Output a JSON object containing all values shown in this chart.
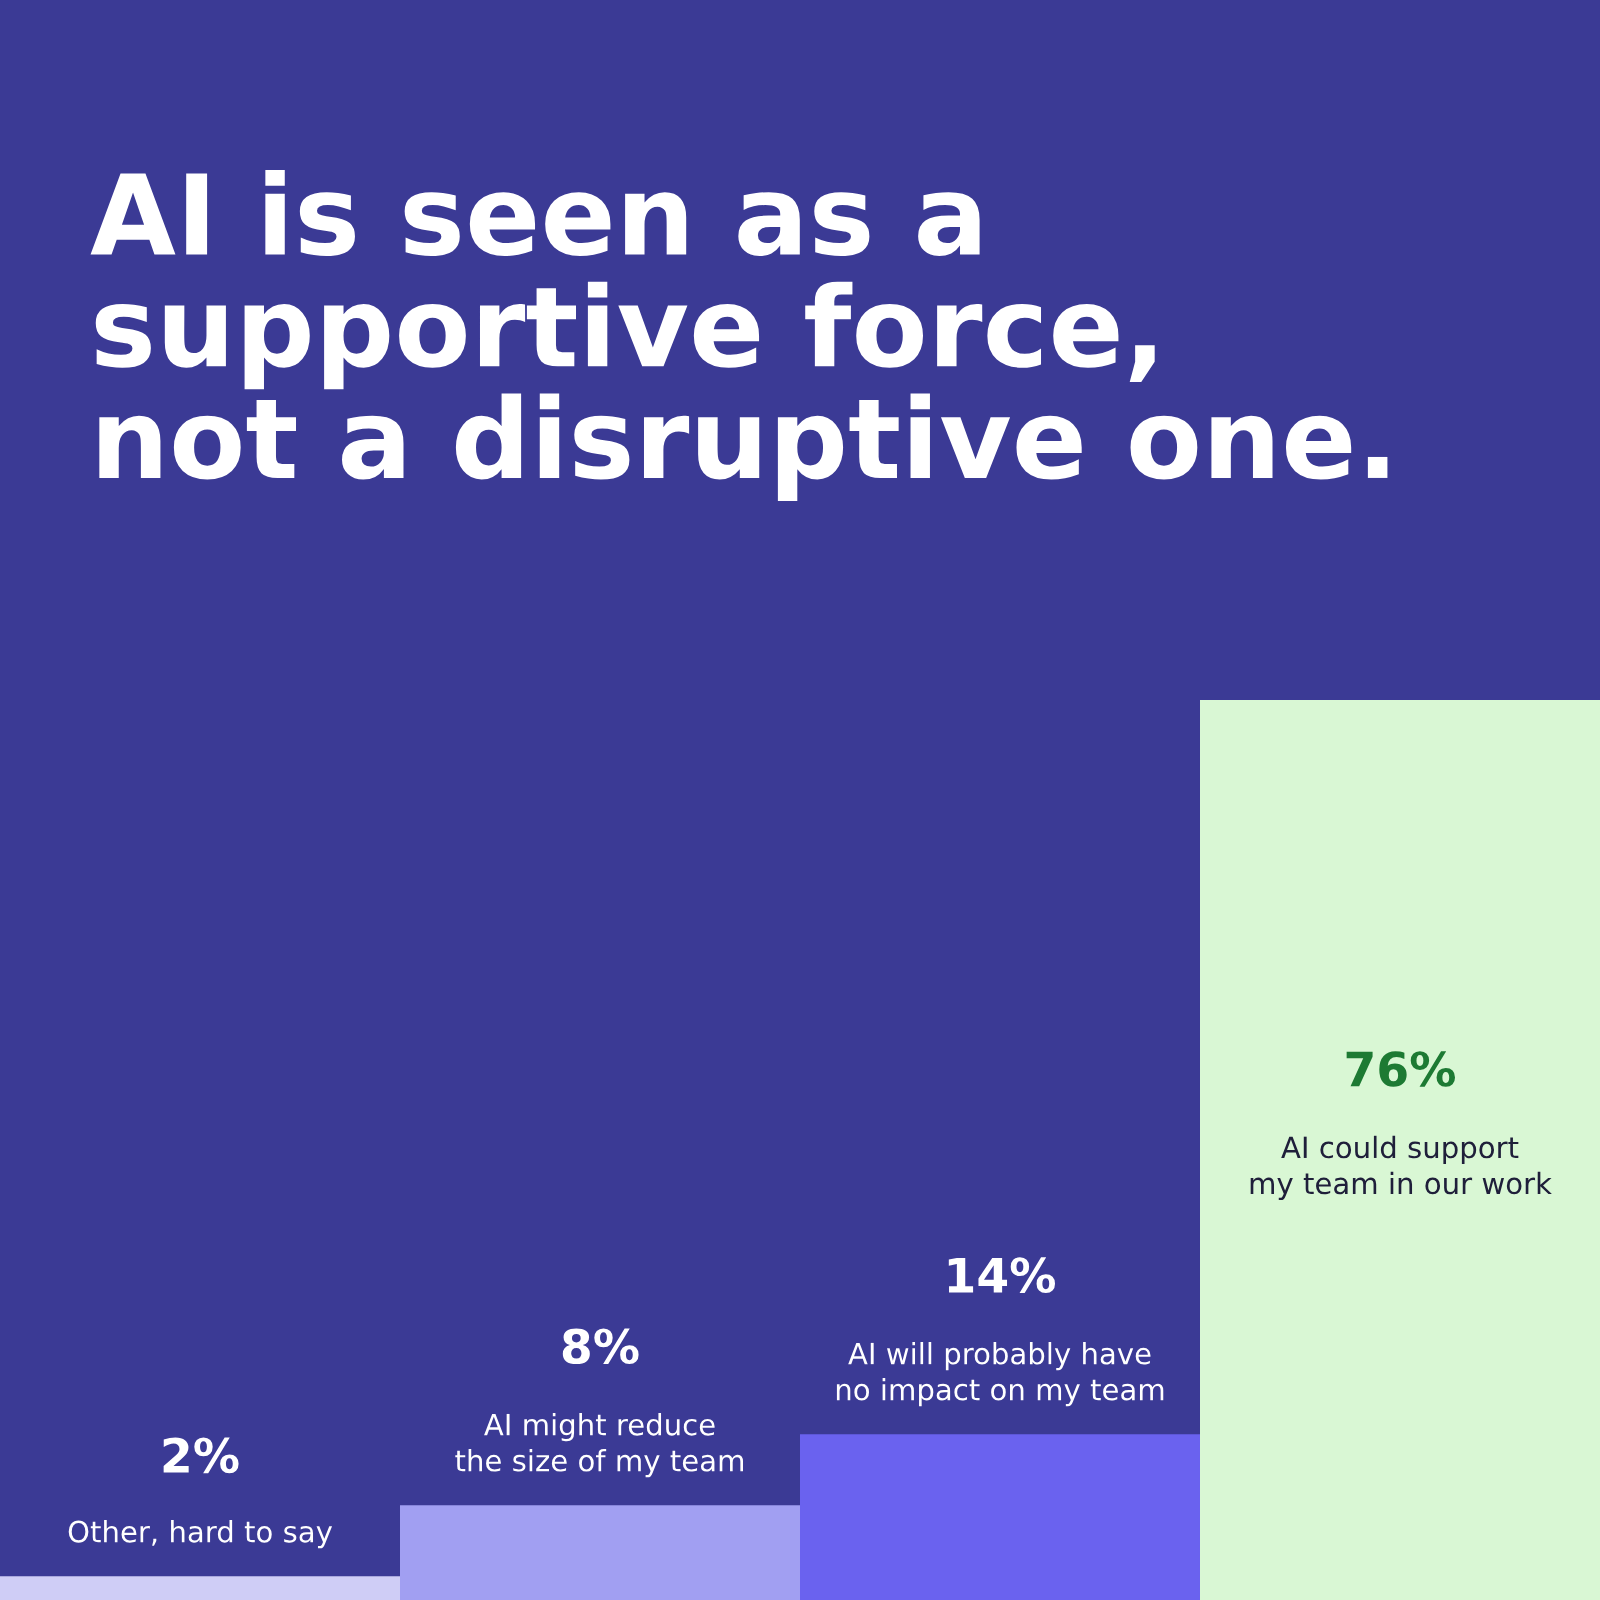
{
  "chart_data": {
    "type": "bar",
    "title": "AI is seen as a\nsupportive force,\nnot a disruptive one.",
    "categories": [
      "Other, hard to say",
      "AI might reduce\nthe size of my team",
      "AI will probably have\nno impact on my team",
      "AI could support\nmy team in our work"
    ],
    "values": [
      2,
      8,
      14,
      76
    ],
    "value_labels": [
      "2%",
      "8%",
      "14%",
      "76%"
    ],
    "colors": [
      "#cfcdf6",
      "#a19ff2",
      "#6a62ef",
      "#d9f7d4"
    ]
  }
}
